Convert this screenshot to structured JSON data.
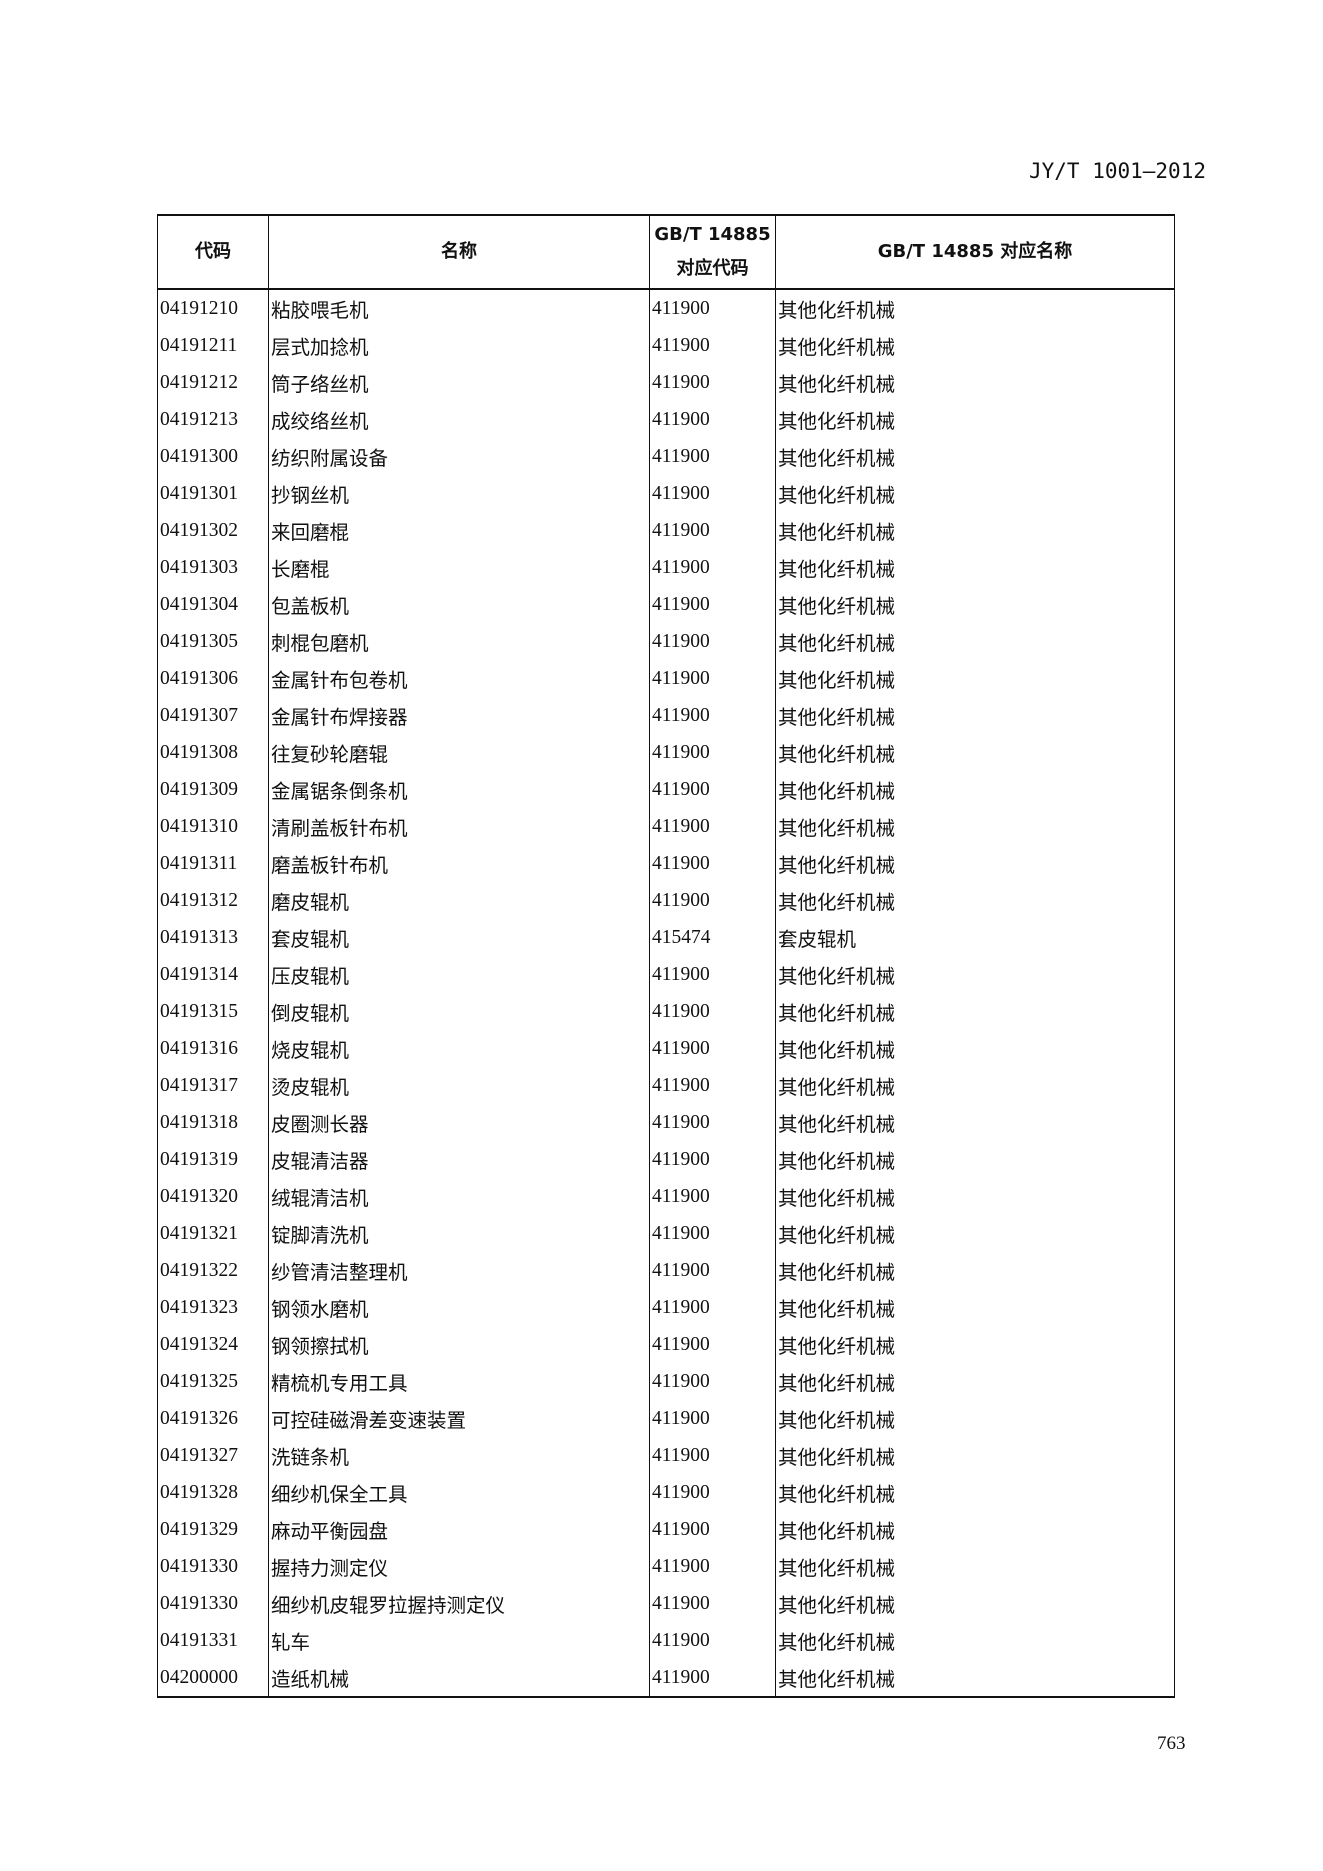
{
  "header": {
    "standard_number": "JY/T 1001—2012"
  },
  "table": {
    "columns": [
      "代码",
      "名称",
      "GB/T 14885\n对应代码",
      "GB/T 14885 对应名称"
    ],
    "column_3_line1": "GB/T 14885",
    "column_3_line2": "对应代码",
    "rows": [
      [
        "04191210",
        "粘胶喂毛机",
        "411900",
        "其他化纤机械"
      ],
      [
        "04191211",
        "层式加捻机",
        "411900",
        "其他化纤机械"
      ],
      [
        "04191212",
        "筒子络丝机",
        "411900",
        "其他化纤机械"
      ],
      [
        "04191213",
        "成绞络丝机",
        "411900",
        "其他化纤机械"
      ],
      [
        "04191300",
        "纺织附属设备",
        "411900",
        "其他化纤机械"
      ],
      [
        "04191301",
        "抄钢丝机",
        "411900",
        "其他化纤机械"
      ],
      [
        "04191302",
        "来回磨棍",
        "411900",
        "其他化纤机械"
      ],
      [
        "04191303",
        "长磨棍",
        "411900",
        "其他化纤机械"
      ],
      [
        "04191304",
        "包盖板机",
        "411900",
        "其他化纤机械"
      ],
      [
        "04191305",
        "刺棍包磨机",
        "411900",
        "其他化纤机械"
      ],
      [
        "04191306",
        "金属针布包卷机",
        "411900",
        "其他化纤机械"
      ],
      [
        "04191307",
        "金属针布焊接器",
        "411900",
        "其他化纤机械"
      ],
      [
        "04191308",
        "往复砂轮磨辊",
        "411900",
        "其他化纤机械"
      ],
      [
        "04191309",
        "金属锯条倒条机",
        "411900",
        "其他化纤机械"
      ],
      [
        "04191310",
        "清刷盖板针布机",
        "411900",
        "其他化纤机械"
      ],
      [
        "04191311",
        "磨盖板针布机",
        "411900",
        "其他化纤机械"
      ],
      [
        "04191312",
        "磨皮辊机",
        "411900",
        "其他化纤机械"
      ],
      [
        "04191313",
        "套皮辊机",
        "415474",
        "套皮辊机"
      ],
      [
        "04191314",
        "压皮辊机",
        "411900",
        "其他化纤机械"
      ],
      [
        "04191315",
        "倒皮辊机",
        "411900",
        "其他化纤机械"
      ],
      [
        "04191316",
        "烧皮辊机",
        "411900",
        "其他化纤机械"
      ],
      [
        "04191317",
        "烫皮辊机",
        "411900",
        "其他化纤机械"
      ],
      [
        "04191318",
        "皮圈测长器",
        "411900",
        "其他化纤机械"
      ],
      [
        "04191319",
        "皮辊清洁器",
        "411900",
        "其他化纤机械"
      ],
      [
        "04191320",
        "绒辊清洁机",
        "411900",
        "其他化纤机械"
      ],
      [
        "04191321",
        "锭脚清洗机",
        "411900",
        "其他化纤机械"
      ],
      [
        "04191322",
        "纱管清洁整理机",
        "411900",
        "其他化纤机械"
      ],
      [
        "04191323",
        "钢领水磨机",
        "411900",
        "其他化纤机械"
      ],
      [
        "04191324",
        "钢领擦拭机",
        "411900",
        "其他化纤机械"
      ],
      [
        "04191325",
        "精梳机专用工具",
        "411900",
        "其他化纤机械"
      ],
      [
        "04191326",
        "可控硅磁滑差变速装置",
        "411900",
        "其他化纤机械"
      ],
      [
        "04191327",
        "洗链条机",
        "411900",
        "其他化纤机械"
      ],
      [
        "04191328",
        "细纱机保全工具",
        "411900",
        "其他化纤机械"
      ],
      [
        "04191329",
        "麻动平衡园盘",
        "411900",
        "其他化纤机械"
      ],
      [
        "04191330",
        "握持力测定仪",
        "411900",
        "其他化纤机械"
      ],
      [
        "04191330",
        "细纱机皮辊罗拉握持测定仪",
        "411900",
        "其他化纤机械"
      ],
      [
        "04191331",
        "轧车",
        "411900",
        "其他化纤机械"
      ],
      [
        "04200000",
        "造纸机械",
        "411900",
        "其他化纤机械"
      ]
    ]
  },
  "footer": {
    "page_number": "763"
  }
}
